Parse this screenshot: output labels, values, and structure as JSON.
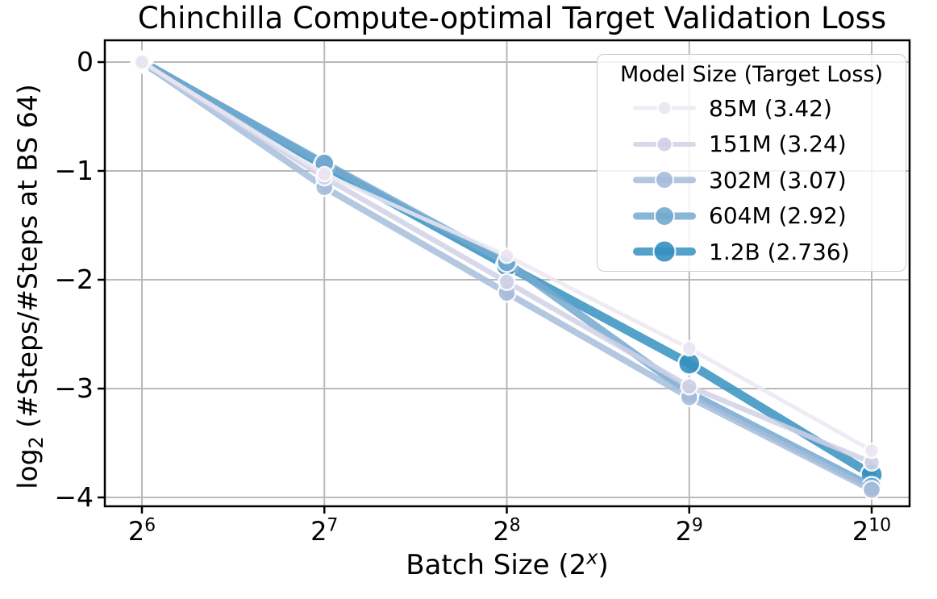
{
  "figure": {
    "title": "Chinchilla Compute-optimal Target Validation Loss",
    "background": "#ffffff"
  },
  "axes": {
    "xlabel": {
      "prefix": "Batch Size (2",
      "sup": "x",
      "suffix": ")"
    },
    "ylabel": {
      "prefix": "log",
      "sub": "2",
      "rest": " (#Steps/#Steps at BS 64)"
    },
    "xtick_base": "2",
    "xtick_exponents": [
      "6",
      "7",
      "8",
      "9",
      "10"
    ],
    "xtick_values": [
      6,
      7,
      8,
      9,
      10
    ],
    "ytick_labels": [
      "0",
      "−1",
      "−2",
      "−3",
      "−4"
    ],
    "ytick_values": [
      0,
      -1,
      -2,
      -3,
      -4
    ],
    "grid_color": "#b9b9b9",
    "spine_color": "#000000"
  },
  "legend": {
    "title": "Model Size (Target Loss)",
    "entries": [
      {
        "label": "85M (3.42)",
        "color": "#ece7f2"
      },
      {
        "label": "151M (3.24)",
        "color": "#d0d1e6"
      },
      {
        "label": "302M (3.07)",
        "color": "#a6bddb"
      },
      {
        "label": "604M (2.92)",
        "color": "#74a9cf"
      },
      {
        "label": "1.2B (2.736)",
        "color": "#3690c0"
      }
    ]
  },
  "chart_data": {
    "type": "line",
    "title": "Chinchilla Compute-optimal Target Validation Loss",
    "xlabel": "Batch Size (2^x)",
    "ylabel": "log2 (#Steps/#Steps at BS 64)",
    "x": [
      6,
      7,
      8,
      9,
      10
    ],
    "x_batch_sizes": [
      64,
      128,
      256,
      512,
      1024
    ],
    "series": [
      {
        "name": "85M (3.42)",
        "color": "#ece7f2",
        "values": [
          0,
          -1.03,
          -1.78,
          -2.63,
          -3.57
        ]
      },
      {
        "name": "151M (3.24)",
        "color": "#d0d1e6",
        "values": [
          0,
          -1.06,
          -2.02,
          -2.98,
          -3.68
        ]
      },
      {
        "name": "302M (3.07)",
        "color": "#a6bddb",
        "values": [
          0,
          -1.15,
          -2.12,
          -3.08,
          -3.93
        ]
      },
      {
        "name": "604M (2.92)",
        "color": "#74a9cf",
        "values": [
          0,
          -0.93,
          -1.84,
          -3.04,
          -3.9
        ]
      },
      {
        "name": "1.2B (2.736)",
        "color": "#3690c0",
        "values": [
          0,
          -0.95,
          -1.87,
          -2.77,
          -3.79
        ]
      }
    ],
    "xlim": [
      5.8,
      10.21
    ],
    "ylim": [
      -4.08,
      0.19
    ],
    "grid": true,
    "legend_position": "upper right"
  }
}
